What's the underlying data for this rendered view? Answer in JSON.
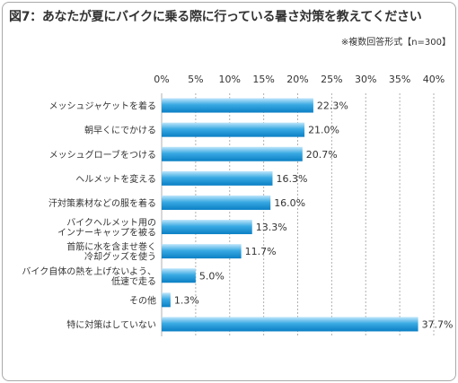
{
  "title": "図7：あなたが夏にバイクに乗る際に行っている暑さ対策を教えてください",
  "note": "※複数回答形式【n=300】",
  "colors": {
    "bar_top": "#bfe6fb",
    "bar_mid": "#3aaae3",
    "bar_bottom": "#0a7fc4",
    "grid": "#b0b0b0",
    "text": "#333333"
  },
  "chart_data": {
    "type": "bar",
    "orientation": "horizontal",
    "xlim": [
      0,
      40
    ],
    "tick_labels": [
      "0%",
      "5%",
      "10%",
      "15%",
      "20%",
      "25%",
      "30%",
      "35%",
      "40%"
    ],
    "ticks": [
      0,
      5,
      10,
      15,
      20,
      25,
      30,
      35,
      40
    ],
    "grid": true,
    "categories": [
      [
        "メッシュジャケットを着る"
      ],
      [
        "朝早くにでかける"
      ],
      [
        "メッシュグローブをつける"
      ],
      [
        "ヘルメットを変える"
      ],
      [
        "汗対策素材などの服を着る"
      ],
      [
        "バイクヘルメット用の",
        "インナーキャップを被る"
      ],
      [
        "首筋に水を含ませ巻く",
        "冷却グッズを使う"
      ],
      [
        "バイク自体の熱を上げないよう、",
        "低速で走る"
      ],
      [
        "その他"
      ],
      [
        "特に対策はしていない"
      ]
    ],
    "values": [
      22.3,
      21.0,
      20.7,
      16.3,
      16.0,
      13.3,
      11.7,
      5.0,
      1.3,
      37.7
    ],
    "value_labels": [
      "22.3%",
      "21.0%",
      "20.7%",
      "16.3%",
      "16.0%",
      "13.3%",
      "11.7%",
      "5.0%",
      "1.3%",
      "37.7%"
    ]
  }
}
